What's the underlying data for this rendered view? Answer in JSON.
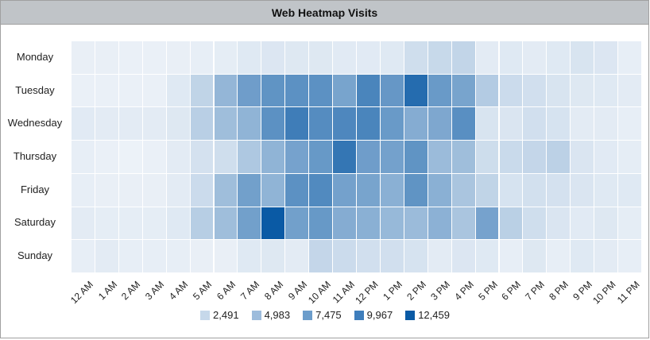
{
  "chart_data": {
    "type": "heatmap",
    "title": "Web Heatmap Visits",
    "xlabel": "",
    "ylabel": "",
    "x": [
      "12 AM",
      "1 AM",
      "2 AM",
      "3 AM",
      "4 AM",
      "5 AM",
      "6 AM",
      "7 AM",
      "8 AM",
      "9 AM",
      "10 AM",
      "11 AM",
      "12 PM",
      "1 PM",
      "2 PM",
      "3 PM",
      "4 PM",
      "5 PM",
      "6 PM",
      "7 PM",
      "8 PM",
      "9 PM",
      "10 PM",
      "11 PM"
    ],
    "y": [
      "Monday",
      "Tuesday",
      "Wednesday",
      "Thursday",
      "Friday",
      "Saturday",
      "Sunday"
    ],
    "values": [
      [
        400,
        400,
        300,
        300,
        400,
        500,
        600,
        900,
        1100,
        1000,
        1000,
        800,
        800,
        900,
        1800,
        2200,
        2500,
        700,
        900,
        700,
        900,
        1300,
        1100,
        500
      ],
      [
        300,
        300,
        300,
        300,
        900,
        2600,
        5000,
        7000,
        7800,
        8000,
        8000,
        6500,
        9000,
        7500,
        11000,
        7300,
        6500,
        3300,
        2000,
        1700,
        1300,
        1000,
        900,
        700
      ],
      [
        800,
        700,
        700,
        700,
        1000,
        3000,
        4400,
        5200,
        8000,
        9600,
        8400,
        8800,
        9000,
        7300,
        5800,
        6200,
        8200,
        1300,
        1200,
        1700,
        1400,
        700,
        700,
        500
      ],
      [
        500,
        300,
        200,
        300,
        700,
        1500,
        1800,
        3600,
        5200,
        6600,
        7400,
        10200,
        7000,
        6700,
        7800,
        4600,
        4400,
        1900,
        2100,
        2400,
        2800,
        1200,
        800,
        600
      ],
      [
        500,
        400,
        400,
        400,
        700,
        2000,
        4400,
        6800,
        5200,
        8000,
        8600,
        6700,
        6500,
        5500,
        7800,
        5500,
        3800,
        2600,
        1400,
        1600,
        1500,
        1200,
        900,
        900
      ],
      [
        700,
        600,
        600,
        600,
        900,
        3100,
        4400,
        6800,
        12459,
        6800,
        7400,
        5800,
        5500,
        4800,
        4600,
        5400,
        3800,
        6600,
        2900,
        1800,
        1200,
        800,
        1000,
        600
      ],
      [
        500,
        700,
        500,
        500,
        500,
        400,
        400,
        900,
        1000,
        700,
        2400,
        2000,
        1700,
        1700,
        1400,
        700,
        1100,
        900,
        500,
        1000,
        500,
        900,
        700,
        500
      ]
    ],
    "color_scale": {
      "min_color": "#f0f4f9",
      "max_color": "#0a5aa5",
      "min": 0,
      "max": 12459
    },
    "legend": [
      {
        "label": "2,491",
        "value": 2491,
        "color": "#c6d8ea"
      },
      {
        "label": "4,983",
        "value": 4983,
        "color": "#9dbcdc"
      },
      {
        "label": "7,475",
        "value": 7475,
        "color": "#6c9dcb"
      },
      {
        "label": "9,967",
        "value": 9967,
        "color": "#3f7ebc"
      },
      {
        "label": "12,459",
        "value": 12459,
        "color": "#0a5aa5"
      }
    ],
    "legend_position": "bottom",
    "grid": false
  }
}
